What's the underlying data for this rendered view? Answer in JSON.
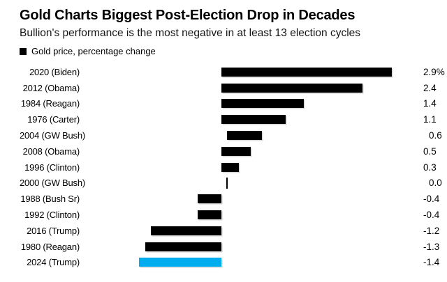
{
  "header": {
    "title": "Gold Charts Biggest Post-Election Drop in Decades",
    "subtitle": "Bullion's performance is the most negative in at least 13 election cycles",
    "legend_label": "Gold price, percentage change"
  },
  "colors": {
    "bar": "#000000",
    "highlight": "#00aeef",
    "legend_swatch": "#000000",
    "background": "#ffffff"
  },
  "chart_data": {
    "type": "bar",
    "orientation": "horizontal",
    "title": "Gold Charts Biggest Post-Election Drop in Decades",
    "subtitle": "Bullion's performance is the most negative in at least 13 election cycles",
    "legend": "Gold price, percentage change",
    "legend_position": "top-left",
    "grid": false,
    "xlim": [
      -1.4,
      2.9
    ],
    "unit": "percent",
    "categories": [
      "2020 (Biden)",
      "2012 (Obama)",
      "1984 (Reagan)",
      "1976 (Carter)",
      "2004 (GW Bush)",
      "2008 (Obama)",
      "1996 (Clinton)",
      "2000 (GW Bush)",
      "1988 (Bush Sr)",
      "1992 (Clinton)",
      "2016 (Trump)",
      "1980 (Reagan)",
      "2024 (Trump)"
    ],
    "values": [
      2.9,
      2.4,
      1.4,
      1.1,
      0.6,
      0.5,
      0.3,
      0.0,
      -0.4,
      -0.4,
      -1.2,
      -1.3,
      -1.4
    ],
    "value_labels": [
      "2.9%",
      "2.4",
      "1.4",
      "1.1",
      "0.6",
      "0.5",
      "0.3",
      "0.0",
      "-0.4",
      "-0.4",
      "-1.2",
      "-1.3",
      "-1.4"
    ],
    "highlight_index": 12,
    "bar_color": "#000000",
    "highlight_color": "#00aeef"
  }
}
